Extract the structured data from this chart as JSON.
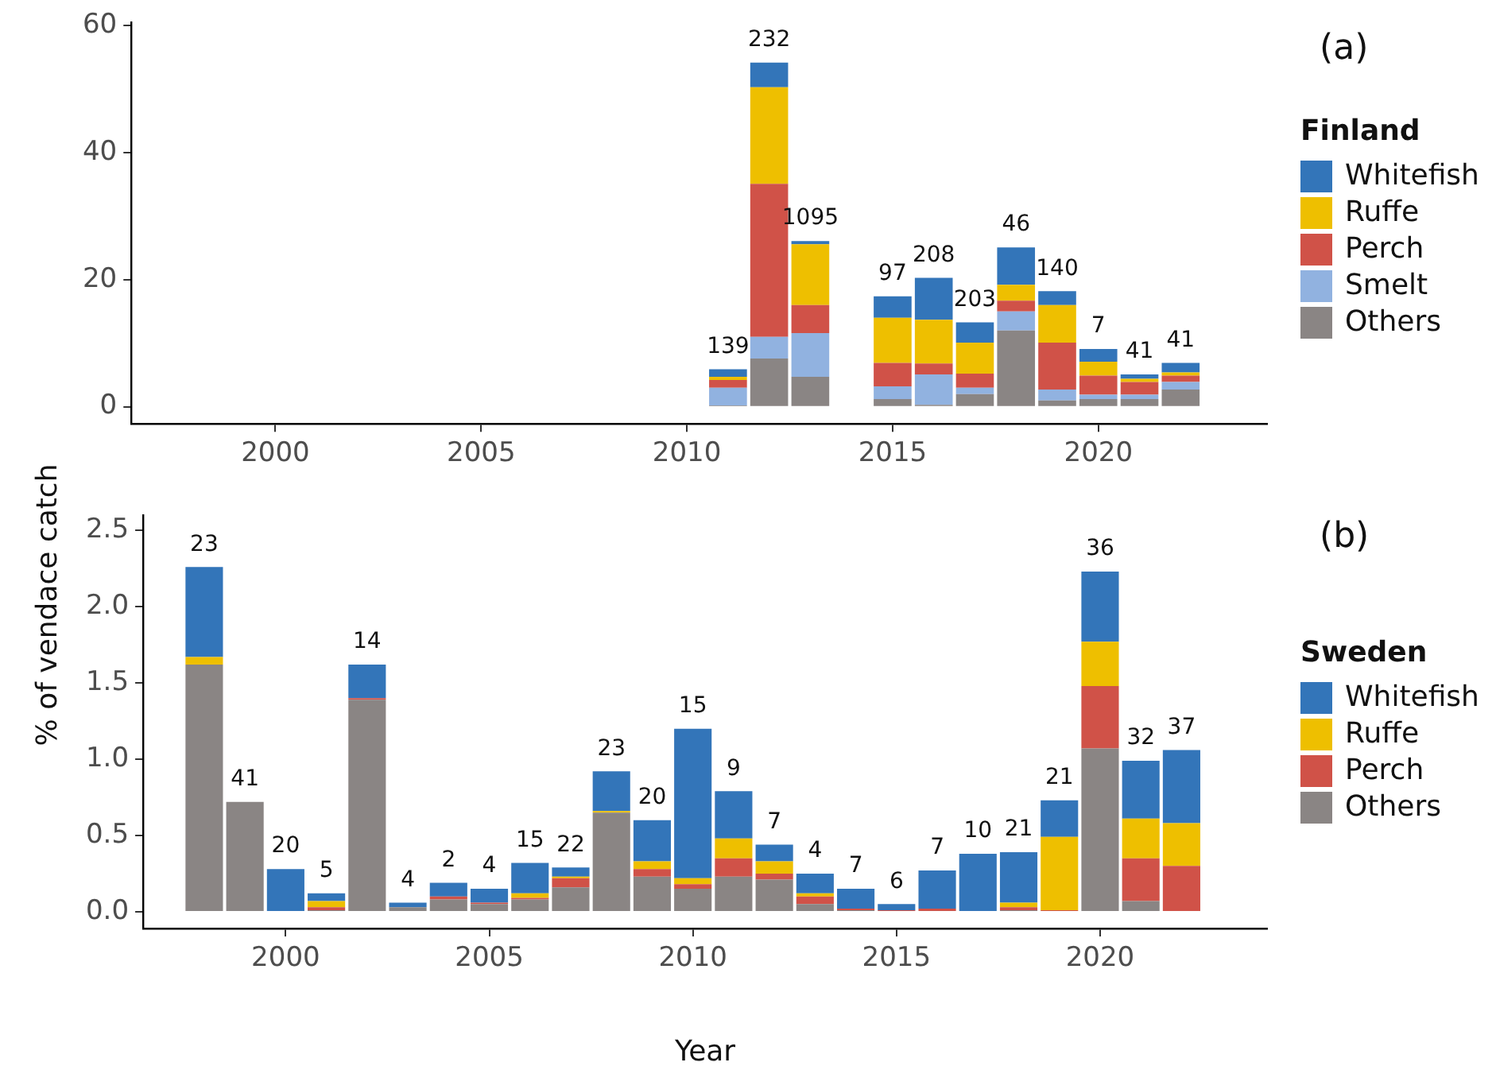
{
  "chart_data": [
    {
      "type": "bar",
      "stacked": true,
      "grid": false,
      "legend": "right",
      "legend_title": "Finland",
      "annotations": [
        "(a)",
        {
          "text": "139",
          "x": 2011,
          "y": 5.9
        },
        {
          "text": "232",
          "x": 2012,
          "y": 54.2
        },
        {
          "text": "1095",
          "x": 2013,
          "y": 26.1
        },
        {
          "text": "97",
          "x": 2015,
          "y": 17.4
        },
        {
          "text": "208",
          "x": 2016,
          "y": 20.3
        },
        {
          "text": "203",
          "x": 2017,
          "y": 13.3
        },
        {
          "text": "46",
          "x": 2018,
          "y": 25.1
        },
        {
          "text": "140",
          "x": 2019,
          "y": 18.2
        },
        {
          "text": "7",
          "x": 2020,
          "y": 9.1
        },
        {
          "text": "41",
          "x": 2021,
          "y": 5.1
        },
        {
          "text": "41",
          "x": 2022,
          "y": 6.9
        }
      ],
      "x": [
        2011,
        2012,
        2013,
        2015,
        2016,
        2017,
        2018,
        2019,
        2020,
        2021,
        2022
      ],
      "xlim": [
        1996.5,
        2024.1
      ],
      "xticks": [
        2000,
        2005,
        2010,
        2015,
        2020
      ],
      "ylim": [
        -2.7,
        60.5
      ],
      "yticks": [
        0,
        20,
        40,
        60
      ],
      "series": [
        {
          "name": "Others",
          "color": "#8a8584",
          "values": [
            0.2,
            7.6,
            4.7,
            1.2,
            0.3,
            2.0,
            12.0,
            1.0,
            1.2,
            1.2,
            2.7
          ]
        },
        {
          "name": "Smelt",
          "color": "#91b2e0",
          "values": [
            2.8,
            3.4,
            6.9,
            2.0,
            4.8,
            1.0,
            3.0,
            1.7,
            0.7,
            0.7,
            1.2
          ]
        },
        {
          "name": "Perch",
          "color": "#d05248",
          "values": [
            1.2,
            24.1,
            4.4,
            3.7,
            1.7,
            2.2,
            1.7,
            7.4,
            3.0,
            2.0,
            1.0
          ]
        },
        {
          "name": "Ruffe",
          "color": "#eebf00",
          "values": [
            0.5,
            15.2,
            9.6,
            7.1,
            6.9,
            4.9,
            2.5,
            5.9,
            2.2,
            0.5,
            0.5
          ]
        },
        {
          "name": "Whitefish",
          "color": "#3375b9",
          "values": [
            1.2,
            3.9,
            0.5,
            3.4,
            6.6,
            3.2,
            5.9,
            2.2,
            2.0,
            0.7,
            1.5
          ]
        }
      ]
    },
    {
      "type": "bar",
      "stacked": true,
      "grid": false,
      "legend": "right",
      "legend_title": "Sweden",
      "xlabel": "Year",
      "ylabel": "% of vendace catch",
      "annotations": [
        "(b)",
        {
          "text": "23",
          "x": 1998,
          "y": 2.26
        },
        {
          "text": "41",
          "x": 1999,
          "y": 0.72
        },
        {
          "text": "20",
          "x": 2000,
          "y": 0.28
        },
        {
          "text": "5",
          "x": 2001,
          "y": 0.12
        },
        {
          "text": "14",
          "x": 2002,
          "y": 1.62
        },
        {
          "text": "4",
          "x": 2003,
          "y": 0.06
        },
        {
          "text": "2",
          "x": 2004,
          "y": 0.19
        },
        {
          "text": "4",
          "x": 2005,
          "y": 0.15
        },
        {
          "text": "15",
          "x": 2006,
          "y": 0.32
        },
        {
          "text": "22",
          "x": 2007,
          "y": 0.29
        },
        {
          "text": "23",
          "x": 2008,
          "y": 0.92
        },
        {
          "text": "20",
          "x": 2009,
          "y": 0.6
        },
        {
          "text": "15",
          "x": 2010,
          "y": 1.2
        },
        {
          "text": "9",
          "x": 2011,
          "y": 0.79
        },
        {
          "text": "7",
          "x": 2012,
          "y": 0.44
        },
        {
          "text": "4",
          "x": 2013,
          "y": 0.25
        },
        {
          "text": "7",
          "x": 2014,
          "y": 0.15
        },
        {
          "text": "6",
          "x": 2015,
          "y": 0.05
        },
        {
          "text": "7",
          "x": 2016,
          "y": 0.27
        },
        {
          "text": "10",
          "x": 2017,
          "y": 0.38
        },
        {
          "text": "21",
          "x": 2018,
          "y": 0.39
        },
        {
          "text": "21",
          "x": 2019,
          "y": 0.73
        },
        {
          "text": "36",
          "x": 2020,
          "y": 2.23
        },
        {
          "text": "32",
          "x": 2021,
          "y": 0.99
        },
        {
          "text": "37",
          "x": 2022,
          "y": 1.06
        }
      ],
      "x": [
        1998,
        1999,
        2000,
        2001,
        2002,
        2003,
        2004,
        2005,
        2006,
        2007,
        2008,
        2009,
        2010,
        2011,
        2012,
        2013,
        2014,
        2015,
        2016,
        2017,
        2018,
        2019,
        2020,
        2021,
        2022
      ],
      "xlim": [
        1996.5,
        2024.1
      ],
      "xticks": [
        2000,
        2005,
        2010,
        2015,
        2020
      ],
      "ylim": [
        -0.11,
        2.6
      ],
      "yticks": [
        {
          "value": 0,
          "label": "0.0"
        },
        {
          "value": 0.5,
          "label": "0.5"
        },
        {
          "value": 1,
          "label": "1.0"
        },
        {
          "value": 1.5,
          "label": "1.5"
        },
        {
          "value": 2,
          "label": "2.0"
        },
        {
          "value": 2.5,
          "label": "2.5"
        }
      ],
      "series": [
        {
          "name": "Others",
          "color": "#8a8584",
          "values": [
            1.62,
            0.72,
            0,
            0.01,
            1.39,
            0.03,
            0.08,
            0.05,
            0.08,
            0.16,
            0.65,
            0.23,
            0.15,
            0.23,
            0.21,
            0.05,
            0.01,
            0,
            0,
            0,
            0.01,
            0,
            1.07,
            0.07,
            0
          ]
        },
        {
          "name": "Perch",
          "color": "#d05248",
          "values": [
            0,
            0,
            0,
            0.02,
            0.01,
            0,
            0.02,
            0.01,
            0.01,
            0.06,
            0,
            0.05,
            0.03,
            0.12,
            0.04,
            0.05,
            0.01,
            0.01,
            0.02,
            0,
            0.02,
            0.01,
            0.41,
            0.28,
            0.3
          ]
        },
        {
          "name": "Ruffe",
          "color": "#eebf00",
          "values": [
            0.05,
            0,
            0,
            0.04,
            0,
            0,
            0,
            0,
            0.03,
            0.01,
            0.01,
            0.05,
            0.04,
            0.13,
            0.08,
            0.02,
            0,
            0,
            0,
            0,
            0.03,
            0.48,
            0.29,
            0.26,
            0.28
          ]
        },
        {
          "name": "Whitefish",
          "color": "#3375b9",
          "values": [
            0.59,
            0,
            0.28,
            0.05,
            0.22,
            0.03,
            0.09,
            0.09,
            0.2,
            0.06,
            0.26,
            0.27,
            0.98,
            0.31,
            0.11,
            0.13,
            0.13,
            0.04,
            0.25,
            0.38,
            0.33,
            0.24,
            0.46,
            0.38,
            0.48
          ]
        }
      ]
    }
  ]
}
